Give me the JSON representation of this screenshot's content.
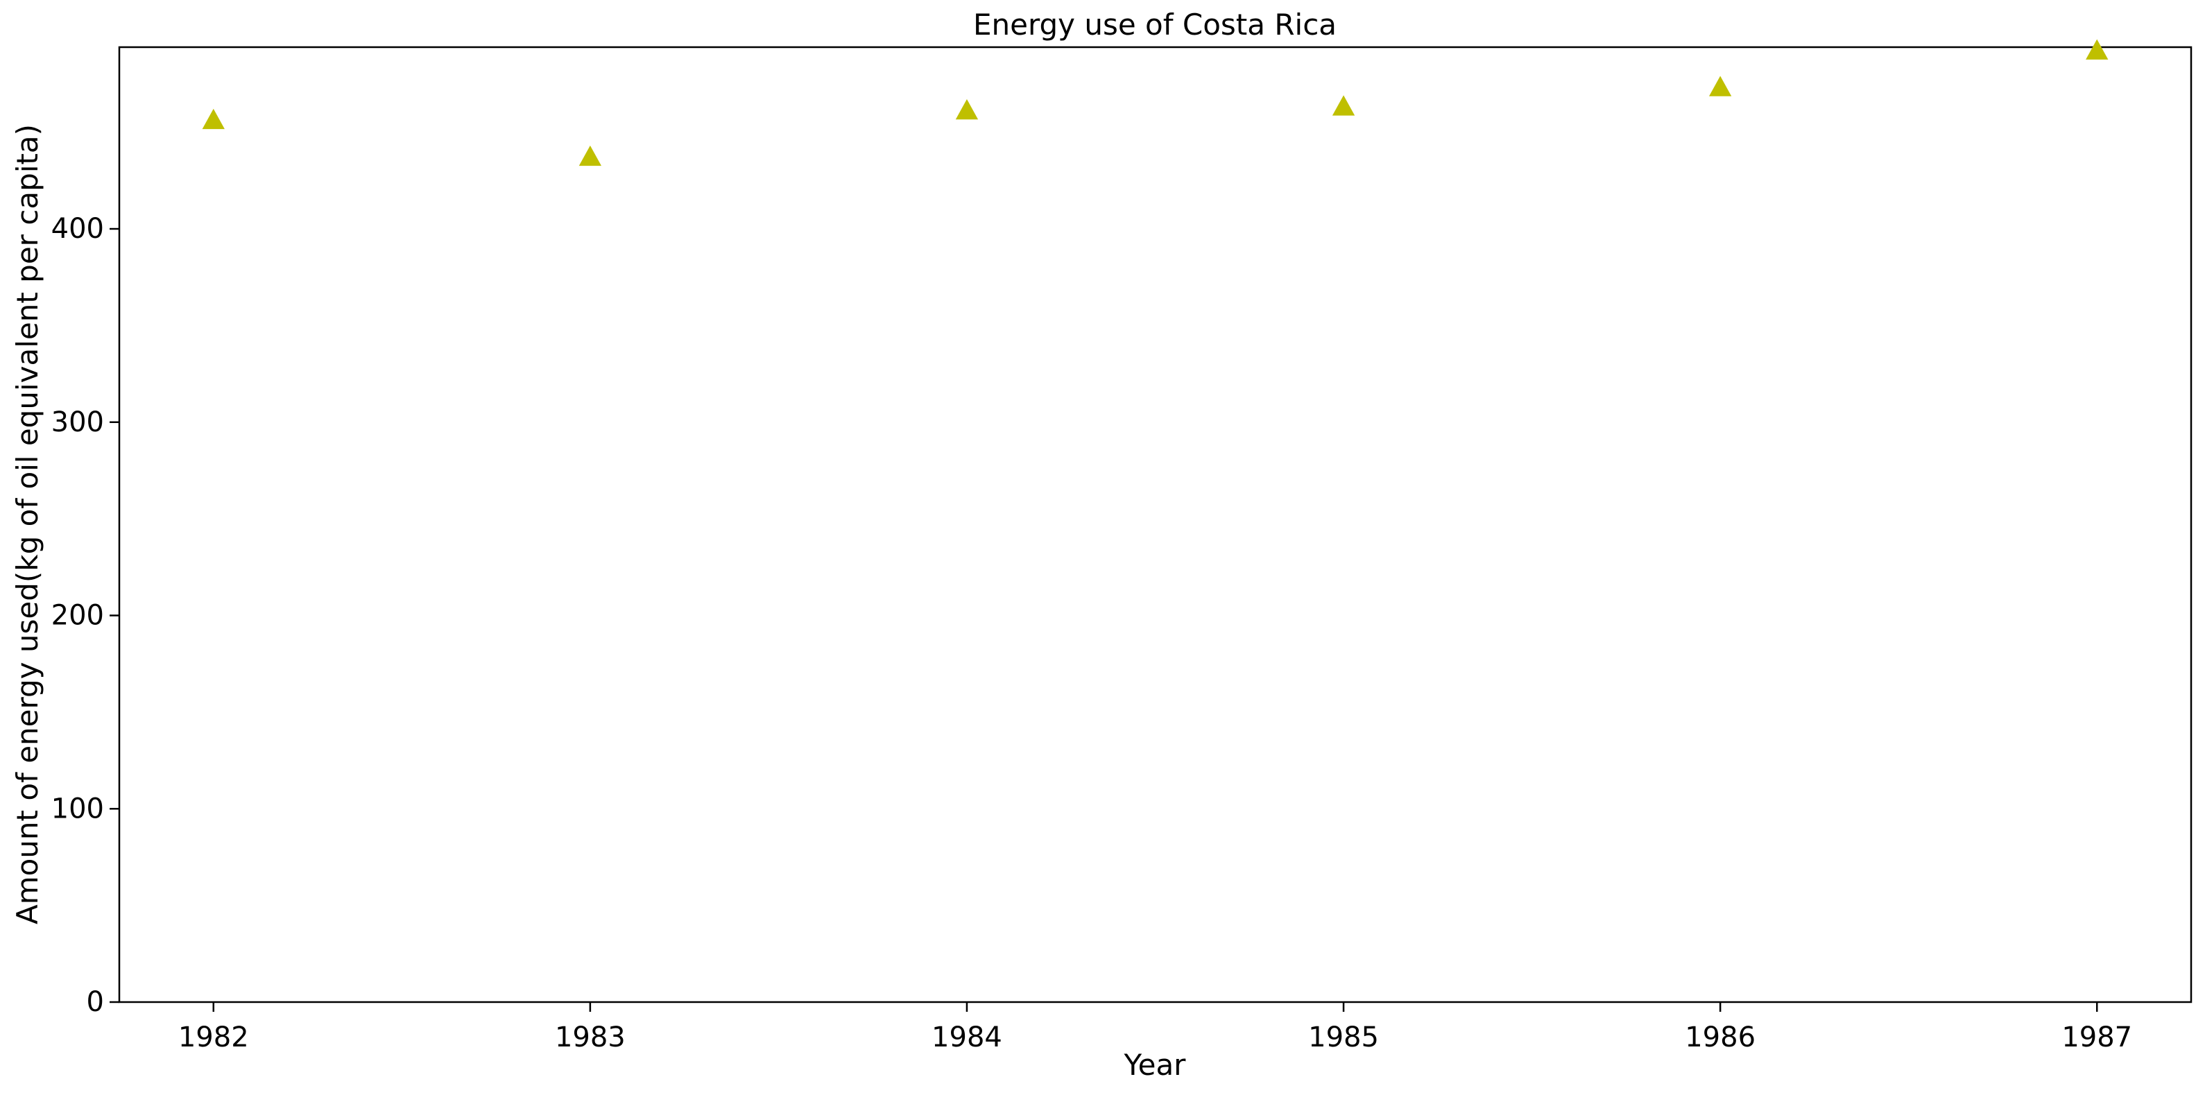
{
  "chart_data": {
    "type": "scatter",
    "title": "Energy use of Costa Rica",
    "xlabel": "Year",
    "ylabel": "Amount of energy used(kg of oil equivalent per capita)",
    "x": [
      1982,
      1983,
      1984,
      1985,
      1986,
      1987
    ],
    "series": [
      {
        "values": [
          456,
          437,
          461,
          463,
          473,
          492
        ],
        "color": "#bfbf00",
        "marker": "triangle-up"
      }
    ],
    "xticks": [
      "1982",
      "1983",
      "1984",
      "1985",
      "1986",
      "1987"
    ],
    "yticks": [
      "0",
      "100",
      "200",
      "300",
      "400"
    ],
    "xlim": [
      1981.75,
      1987.25
    ],
    "ylim": [
      0,
      494
    ],
    "grid": false,
    "legend": "none"
  }
}
